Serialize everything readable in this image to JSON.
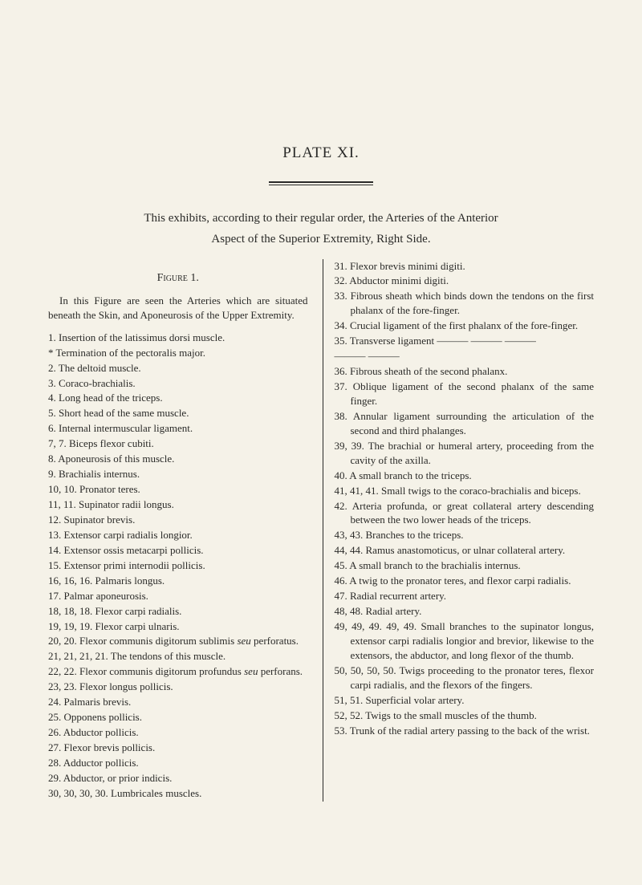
{
  "plateTitle": "PLATE XI.",
  "intro1": "This exhibits, according to their regular order, the Arteries of the Anterior",
  "intro2": "Aspect of the Superior Extremity, Right Side.",
  "figureLabel": "Figure 1.",
  "leftPara": "In this Figure are seen the Arteries which are situated beneath the Skin, and Aponeurosis of the Upper Extremity.",
  "leftItems": [
    "1. Insertion of the latissimus dorsi muscle.",
    "* Termination of the pectoralis major.",
    "2. The deltoid muscle.",
    "3. Coraco-brachialis.",
    "4. Long head of the triceps.",
    "5. Short head of the same muscle.",
    "6. Internal intermuscular ligament.",
    "7, 7. Biceps flexor cubiti.",
    "8. Aponeurosis of this muscle.",
    "9. Brachialis internus.",
    "10, 10. Pronator teres.",
    "11, 11. Supinator radii longus.",
    "12. Supinator brevis.",
    "13. Extensor carpi radialis longior.",
    "14. Extensor ossis metacarpi pollicis.",
    "15. Extensor primi internodii pollicis.",
    "16, 16, 16. Palmaris longus.",
    "17. Palmar aponeurosis.",
    "18, 18, 18. Flexor carpi radialis.",
    "19, 19, 19. Flexor carpi ulnaris.",
    "20, 20. Flexor communis digitorum sublimis seu perforatus.",
    "21, 21, 21, 21. The tendons of this muscle.",
    "22, 22. Flexor communis digitorum profundus seu perforans.",
    "23, 23. Flexor longus pollicis.",
    "24. Palmaris brevis.",
    "25. Opponens pollicis.",
    "26. Abductor pollicis.",
    "27. Flexor brevis pollicis.",
    "28. Adductor pollicis.",
    "29. Abductor, or prior indicis.",
    "30, 30, 30, 30. Lumbricales muscles."
  ],
  "rightItems": [
    "31. Flexor brevis minimi digiti.",
    "32. Abductor minimi digiti.",
    "33. Fibrous sheath which binds down the tendons on the first phalanx of the fore-finger.",
    "34. Crucial ligament of the first phalanx of the fore-finger.",
    "35. Transverse ligament ——— ——— ———",
    "——— ———",
    "36. Fibrous sheath of the second phalanx.",
    "37. Oblique ligament of the second phalanx of the same finger.",
    "38. Annular ligament surrounding the articulation of the second and third phalanges.",
    "39, 39. The brachial or humeral artery, proceeding from the cavity of the axilla.",
    "40. A small branch to the triceps.",
    "41, 41, 41. Small twigs to the coraco-brachialis and biceps.",
    "42. Arteria profunda, or great collateral artery descending between the two lower heads of the triceps.",
    "43, 43. Branches to the triceps.",
    "44, 44. Ramus anastomoticus, or ulnar collateral artery.",
    "45. A small branch to the brachialis internus.",
    "46. A twig to the pronator teres, and flexor carpi radialis.",
    "47. Radial recurrent artery.",
    "48, 48. Radial artery.",
    "49, 49, 49. 49, 49. Small branches to the supinator longus, extensor carpi radialis longior and brevior, likewise to the extensors, the abductor, and long flexor of the thumb.",
    "50, 50, 50, 50. Twigs proceeding to the pronator teres, flexor carpi radialis, and the flexors of the fingers.",
    "51, 51. Superficial volar artery.",
    "52, 52. Twigs to the small muscles of the thumb.",
    "53. Trunk of the radial artery passing to the back of the wrist."
  ]
}
